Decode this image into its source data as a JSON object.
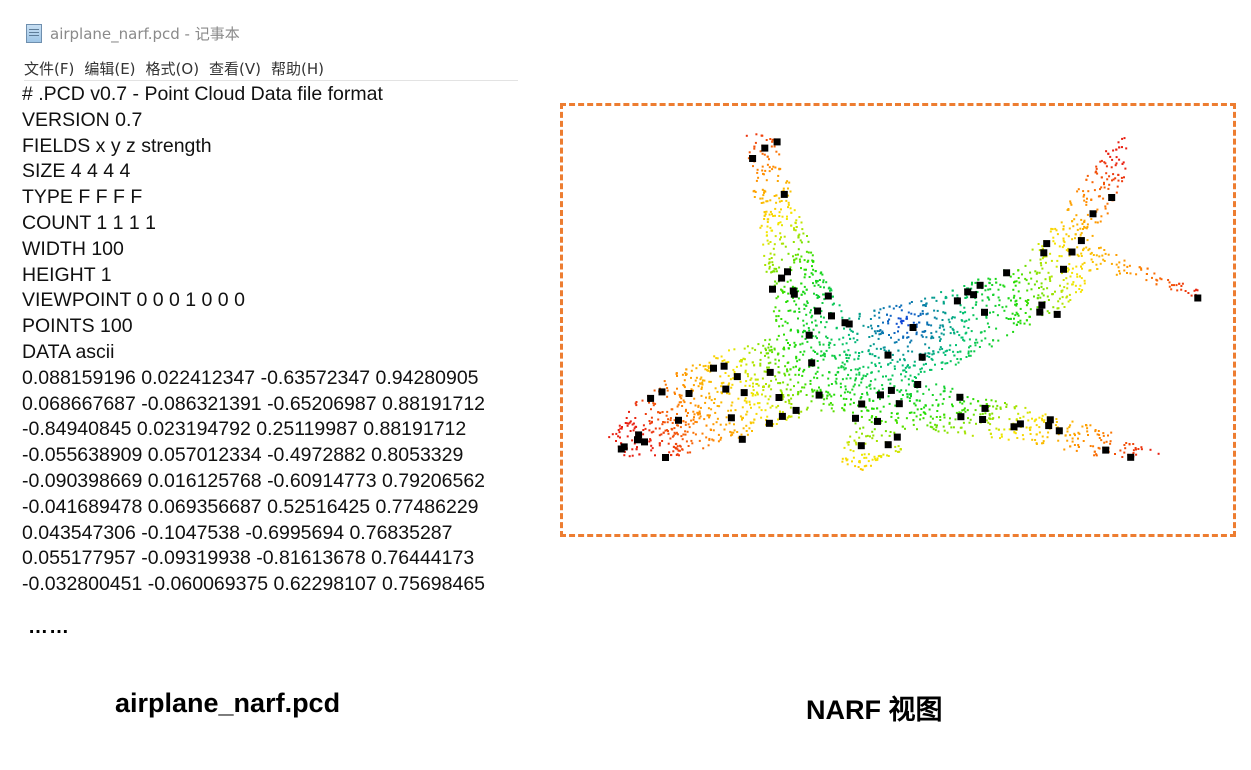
{
  "window": {
    "title": "airplane_narf.pcd - 记事本",
    "icon": "notepad-icon"
  },
  "menu": [
    "文件(F)",
    "编辑(E)",
    "格式(O)",
    "查看(V)",
    "帮助(H)"
  ],
  "file_lines": [
    "# .PCD v0.7 - Point Cloud Data file format",
    "VERSION 0.7",
    "FIELDS x y z strength",
    "SIZE 4 4 4 4",
    "TYPE F F F F",
    "COUNT 1 1 1 1",
    "WIDTH 100",
    "HEIGHT 1",
    "VIEWPOINT 0 0 0 1 0 0 0",
    "POINTS 100",
    "DATA ascii",
    "0.088159196 0.022412347 -0.63572347 0.94280905",
    "0.068667687 -0.086321391 -0.65206987 0.88191712",
    "-0.84940845 0.023194792 0.25119987 0.88191712",
    "-0.055638909 0.057012334 -0.4972882 0.8053329",
    "-0.090398669 0.016125768 -0.60914773 0.79206562",
    "-0.041689478 0.069356687 0.52516425 0.77486229",
    "0.043547306 -0.1047538 -0.6995694 0.76835287",
    "0.055177957 -0.09319938 -0.81613678 0.76444173",
    "-0.032800451 -0.060069375 0.62298107 0.75698465"
  ],
  "ellipsis": "……",
  "captions": {
    "left": "airplane_narf.pcd",
    "right": "NARF 视图"
  },
  "view": {
    "frame_color": "#ed7d31",
    "keypoint_color": "#000000",
    "colormap": [
      "#e81e10",
      "#ff8c00",
      "#f6e600",
      "#22dd00",
      "#00c070",
      "#1040dd"
    ]
  }
}
